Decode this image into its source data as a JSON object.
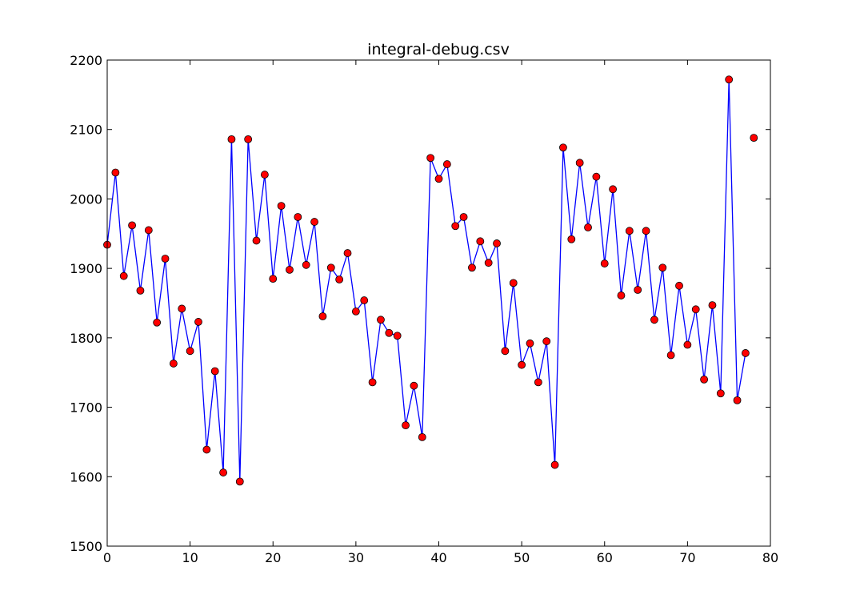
{
  "chart_data": {
    "type": "line",
    "title": "integral-debug.csv",
    "xlabel": "",
    "ylabel": "",
    "xlim": [
      0,
      80
    ],
    "ylim": [
      1500,
      2200
    ],
    "xticks": [
      0,
      10,
      20,
      30,
      40,
      50,
      60,
      70,
      80
    ],
    "yticks": [
      1500,
      1600,
      1700,
      1800,
      1900,
      2000,
      2100,
      2200
    ],
    "grid": false,
    "legend": "none",
    "series": [
      {
        "line_color": "#0000ff",
        "marker_color": "#ff0000",
        "x": [
          0,
          1,
          2,
          3,
          4,
          5,
          6,
          7,
          8,
          9,
          10,
          11,
          12,
          13,
          14,
          15,
          16,
          17,
          18,
          19,
          20,
          21,
          22,
          23,
          24,
          25,
          26,
          27,
          28,
          29,
          30,
          31,
          32,
          33,
          34,
          35,
          36,
          37,
          38,
          39,
          40,
          41,
          42,
          43,
          44,
          45,
          46,
          47,
          48,
          49,
          50,
          51,
          52,
          53,
          54,
          55,
          56,
          57,
          58,
          59,
          60,
          61,
          62,
          63,
          64,
          65,
          66,
          67,
          68,
          69,
          70,
          71,
          72,
          73,
          74,
          75,
          76,
          77,
          78
        ],
        "y": [
          1934,
          2038,
          1889,
          1962,
          1868,
          1955,
          1822,
          1914,
          1763,
          1842,
          1781,
          1823,
          1639,
          1752,
          1606,
          2086,
          1593,
          2086,
          1940,
          2035,
          1885,
          1990,
          1898,
          1974,
          1905,
          1967,
          1831,
          1901,
          1884,
          1922,
          1838,
          1854,
          1736,
          1826,
          1807,
          1803,
          1674,
          1731,
          1657,
          2059,
          2029,
          2050,
          1961,
          1974,
          1901,
          1939,
          1908,
          1936,
          1781,
          1879,
          1761,
          1792,
          1736,
          1795,
          1617,
          2074,
          1942,
          2052,
          1959,
          2032,
          1907,
          2014,
          1861,
          1954,
          1869,
          1954,
          1826,
          1901,
          1775,
          1875,
          1790,
          1841,
          1740,
          1847,
          1720,
          2172,
          1710,
          1778,
          2088
        ],
        "line_x_end": 77
      }
    ]
  }
}
